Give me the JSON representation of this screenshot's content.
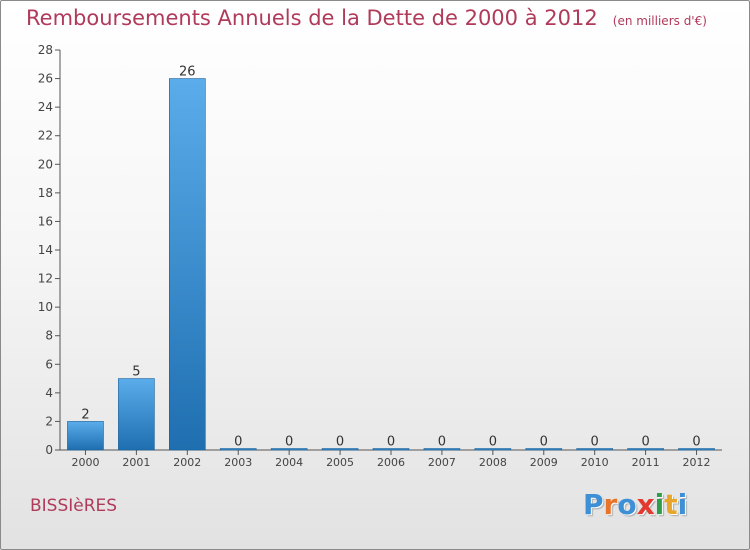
{
  "header": {
    "title": "Remboursements Annuels de la Dette de 2000 à 2012",
    "subtitle": "(en milliers d'€)"
  },
  "commune": "BISSIèRES",
  "logo": {
    "text": "Proxiti",
    "letter_colors": [
      "#3d8fd6",
      "#e8742a",
      "#3d8fd6",
      "#e23a2e",
      "#2e9e4a",
      "#e8a72a",
      "#3d8fd6"
    ]
  },
  "colors": {
    "title": "#b03a5a",
    "bar_top": "#5aacea",
    "bar_bottom": "#1f6fb0",
    "axis": "#555555",
    "grid": "#dddddd"
  },
  "chart_data": {
    "type": "bar",
    "categories": [
      "2000",
      "2001",
      "2002",
      "2003",
      "2004",
      "2005",
      "2006",
      "2007",
      "2008",
      "2009",
      "2010",
      "2011",
      "2012"
    ],
    "values": [
      2,
      5,
      26,
      0,
      0,
      0,
      0,
      0,
      0,
      0,
      0,
      0,
      0
    ],
    "data_labels": [
      "2",
      "5",
      "26",
      "0",
      "0",
      "0",
      "0",
      "0",
      "0",
      "0",
      "0",
      "0",
      "0"
    ],
    "ylim": [
      0,
      28
    ],
    "yticks": [
      0,
      2,
      4,
      6,
      8,
      10,
      12,
      14,
      16,
      18,
      20,
      22,
      24,
      26,
      28
    ],
    "grid": false
  }
}
